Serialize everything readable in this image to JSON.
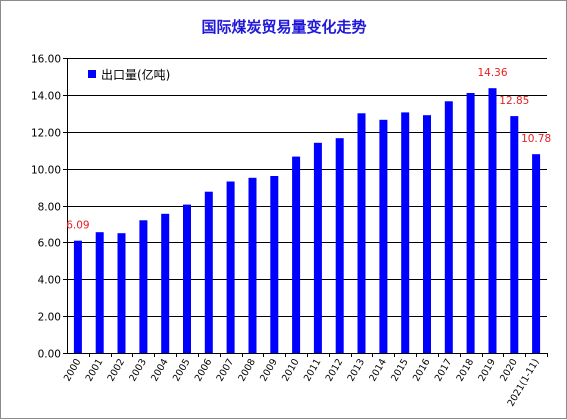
{
  "chart_data": {
    "type": "bar",
    "title": "国际煤炭贸易量变化走势",
    "xlabel": "",
    "ylabel": "",
    "categories": [
      "2000",
      "2001",
      "2002",
      "2003",
      "2004",
      "2005",
      "2006",
      "2007",
      "2008",
      "2009",
      "2010",
      "2011",
      "2012",
      "2013",
      "2014",
      "2015",
      "2016",
      "2017",
      "2018",
      "2019",
      "2020",
      "2021(1-11)"
    ],
    "series": [
      {
        "name": "出口量(亿吨)",
        "values": [
          6.09,
          6.55,
          6.5,
          7.2,
          7.55,
          8.05,
          8.75,
          9.3,
          9.5,
          9.6,
          10.65,
          11.4,
          11.65,
          13.0,
          12.65,
          13.05,
          12.9,
          13.65,
          14.1,
          14.36,
          12.85,
          10.78
        ]
      }
    ],
    "ylim": [
      0,
      16
    ],
    "yticks": [
      "0.00",
      "2.00",
      "4.00",
      "6.00",
      "8.00",
      "10.00",
      "12.00",
      "14.00",
      "16.00"
    ],
    "data_labels": [
      {
        "index": 0,
        "text": "6.09"
      },
      {
        "index": 19,
        "text": "14.36"
      },
      {
        "index": 20,
        "text": "12.85"
      },
      {
        "index": 21,
        "text": "10.78"
      }
    ],
    "grid": true,
    "legend": "top-left",
    "colors": {
      "bar": "#0000ff",
      "title": "#1f17d9",
      "data_label": "#e8201f"
    }
  }
}
